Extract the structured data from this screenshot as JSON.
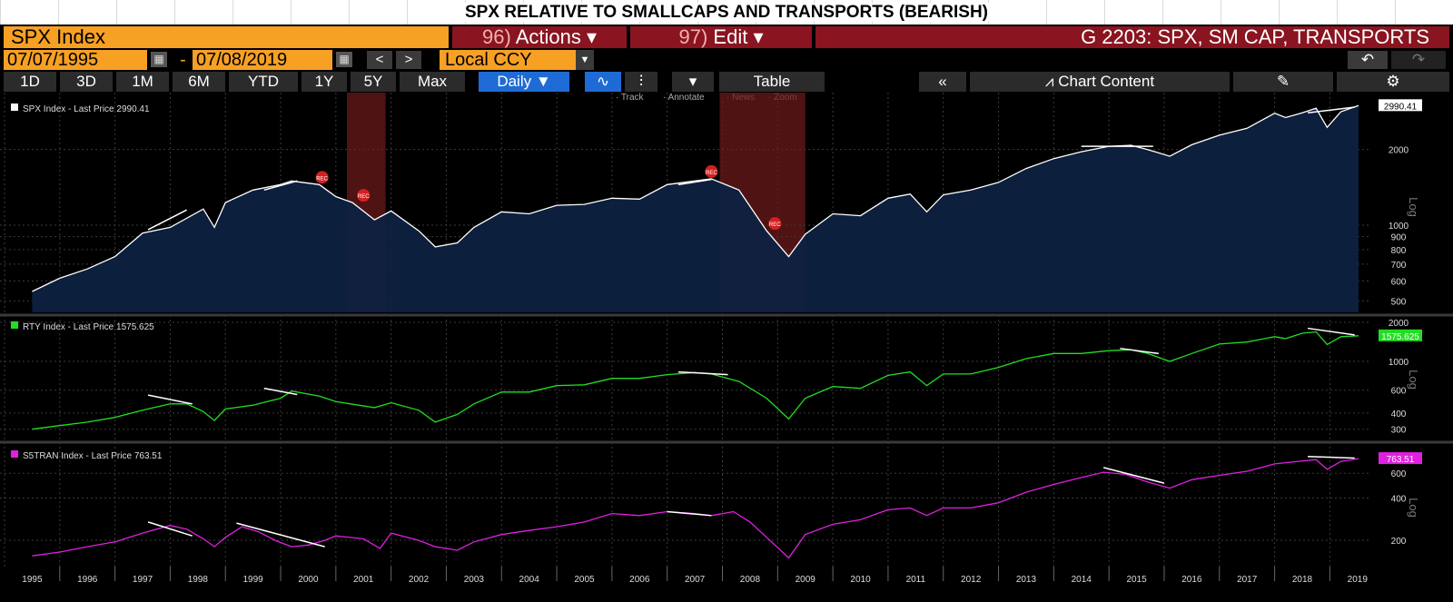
{
  "title": "SPX RELATIVE TO SMALLCAPS AND TRANSPORTS (BEARISH)",
  "toolbar": {
    "ticker": "SPX Index",
    "actions_num": "96)",
    "actions_label": "Actions",
    "edit_num": "97)",
    "edit_label": "Edit",
    "graph_title": "G 2203: SPX, SM CAP, TRANSPORTS",
    "start_date": "07/07/1995",
    "end_date": "07/08/2019",
    "prev": "<",
    "next": ">",
    "currency": "Local CCY",
    "periods": [
      "1D",
      "3D",
      "1M",
      "6M",
      "YTD",
      "1Y",
      "5Y",
      "Max"
    ],
    "frequency": "Daily",
    "table_label": "Table",
    "chart_content_label": "Chart Content",
    "tools": [
      "Track",
      "Annotate",
      "News",
      "Zoom"
    ]
  },
  "chart_data": [
    {
      "type": "area",
      "legend": "SPX Index - Last Price 2990.41",
      "last_price_label": "2990.41",
      "color": "#ffffff",
      "fill": "#0d2140",
      "scale": "log",
      "ylim": [
        450,
        3100
      ],
      "y_ticks": [
        "2000",
        "1000",
        "900",
        "800",
        "700",
        "600",
        "500"
      ],
      "y_tick_values": [
        2000,
        1000,
        900,
        800,
        700,
        600,
        500
      ],
      "x": [
        1995.5,
        1996.0,
        1996.5,
        1997.0,
        1997.5,
        1998.0,
        1998.6,
        1998.8,
        1999.0,
        1999.5,
        2000.0,
        2000.2,
        2000.7,
        2001.0,
        2001.3,
        2001.7,
        2002.0,
        2002.5,
        2002.8,
        2003.2,
        2003.5,
        2004.0,
        2004.5,
        2005.0,
        2005.5,
        2006.0,
        2006.5,
        2007.0,
        2007.5,
        2007.8,
        2008.3,
        2008.8,
        2009.2,
        2009.5,
        2010.0,
        2010.5,
        2011.0,
        2011.4,
        2011.7,
        2012.0,
        2012.5,
        2013.0,
        2013.5,
        2014.0,
        2014.5,
        2015.0,
        2015.4,
        2015.7,
        2016.1,
        2016.5,
        2017.0,
        2017.5,
        2018.0,
        2018.2,
        2018.5,
        2018.75,
        2018.95,
        2019.2,
        2019.52
      ],
      "values": [
        545,
        615,
        670,
        750,
        930,
        980,
        1160,
        980,
        1230,
        1380,
        1450,
        1500,
        1450,
        1300,
        1230,
        1050,
        1140,
        950,
        820,
        850,
        980,
        1130,
        1110,
        1200,
        1210,
        1280,
        1270,
        1450,
        1500,
        1530,
        1380,
        950,
        750,
        920,
        1110,
        1090,
        1280,
        1330,
        1130,
        1320,
        1380,
        1480,
        1680,
        1840,
        1960,
        2060,
        2080,
        2000,
        1880,
        2090,
        2280,
        2430,
        2790,
        2680,
        2800,
        2920,
        2450,
        2830,
        2990.41
      ],
      "trendlines": [
        [
          1997.6,
          960,
          1998.3,
          1150
        ],
        [
          1999.7,
          1380,
          2000.3,
          1500
        ],
        [
          2007.2,
          1450,
          2007.8,
          1520
        ],
        [
          2014.5,
          2060,
          2015.8,
          2060
        ],
        [
          2018.6,
          2800,
          2019.45,
          2950
        ]
      ],
      "recessions": [
        [
          2001.2,
          2001.9
        ],
        [
          2007.95,
          2009.5
        ]
      ]
    },
    {
      "type": "line",
      "legend": "RTY Index - Last Price 1575.625",
      "last_price_label": "1575.625",
      "color": "#22dd22",
      "scale": "log",
      "ylim": [
        250,
        2100
      ],
      "y_ticks": [
        "2000",
        "1000",
        "600",
        "400",
        "300"
      ],
      "y_tick_values": [
        2000,
        1000,
        600,
        400,
        300
      ],
      "x": [
        1995.5,
        1996.0,
        1996.5,
        1997.0,
        1997.5,
        1998.0,
        1998.3,
        1998.6,
        1998.8,
        1999.0,
        1999.5,
        2000.0,
        2000.2,
        2000.7,
        2001.0,
        2001.7,
        2002.0,
        2002.5,
        2002.8,
        2003.2,
        2003.5,
        2004.0,
        2004.5,
        2005.0,
        2005.5,
        2006.0,
        2006.5,
        2007.0,
        2007.5,
        2007.8,
        2008.3,
        2008.8,
        2009.2,
        2009.5,
        2010.0,
        2010.5,
        2011.0,
        2011.4,
        2011.7,
        2012.0,
        2012.5,
        2013.0,
        2013.5,
        2014.0,
        2014.5,
        2015.0,
        2015.4,
        2015.7,
        2016.1,
        2016.5,
        2017.0,
        2017.5,
        2018.0,
        2018.2,
        2018.5,
        2018.75,
        2018.95,
        2019.2,
        2019.52
      ],
      "values": [
        300,
        320,
        340,
        370,
        420,
        470,
        470,
        410,
        350,
        430,
        460,
        520,
        590,
        540,
        490,
        440,
        480,
        420,
        340,
        390,
        470,
        580,
        580,
        650,
        660,
        740,
        740,
        790,
        820,
        800,
        700,
        520,
        360,
        520,
        640,
        620,
        780,
        830,
        650,
        800,
        800,
        900,
        1050,
        1150,
        1150,
        1210,
        1230,
        1150,
        1000,
        1150,
        1360,
        1410,
        1550,
        1500,
        1650,
        1690,
        1350,
        1550,
        1575.625
      ],
      "trendlines": [
        [
          1997.6,
          550,
          1998.4,
          470
        ],
        [
          1999.7,
          620,
          2000.3,
          555
        ],
        [
          2007.2,
          830,
          2008.1,
          790
        ],
        [
          2015.2,
          1260,
          2015.9,
          1150
        ],
        [
          2018.6,
          1800,
          2019.45,
          1600
        ]
      ]
    },
    {
      "type": "line",
      "legend": "S5TRAN Index - Last Price 763.51",
      "last_price_label": "763.51",
      "color": "#e020e0",
      "scale": "log",
      "ylim": [
        130,
        900
      ],
      "y_ticks": [
        "600",
        "400",
        "200"
      ],
      "y_tick_values": [
        600,
        400,
        200
      ],
      "x": [
        1995.5,
        1996.0,
        1996.5,
        1997.0,
        1997.5,
        1998.0,
        1998.3,
        1998.6,
        1998.8,
        1999.0,
        1999.3,
        1999.6,
        1999.9,
        2000.2,
        2000.5,
        2000.8,
        2001.0,
        2001.5,
        2001.8,
        2002.0,
        2002.5,
        2002.8,
        2003.2,
        2003.5,
        2004.0,
        2004.5,
        2005.0,
        2005.5,
        2006.0,
        2006.5,
        2007.0,
        2007.5,
        2007.8,
        2008.2,
        2008.5,
        2008.8,
        2009.2,
        2009.5,
        2010.0,
        2010.5,
        2011.0,
        2011.4,
        2011.7,
        2012.0,
        2012.5,
        2013.0,
        2013.5,
        2014.0,
        2014.5,
        2014.9,
        2015.3,
        2015.7,
        2016.1,
        2016.5,
        2017.0,
        2017.5,
        2018.0,
        2018.3,
        2018.75,
        2018.95,
        2019.2,
        2019.52
      ],
      "values": [
        155,
        165,
        180,
        195,
        225,
        255,
        240,
        205,
        180,
        210,
        250,
        230,
        200,
        180,
        185,
        200,
        215,
        205,
        175,
        225,
        200,
        180,
        170,
        195,
        220,
        235,
        250,
        270,
        310,
        300,
        320,
        310,
        300,
        320,
        270,
        210,
        150,
        220,
        260,
        280,
        330,
        340,
        300,
        340,
        340,
        370,
        440,
        500,
        560,
        610,
        590,
        520,
        470,
        540,
        580,
        620,
        700,
        720,
        750,
        640,
        730,
        763.51
      ],
      "trendlines": [
        [
          1997.6,
          270,
          1998.4,
          215
        ],
        [
          1999.2,
          265,
          2000.8,
          180
        ],
        [
          2007.0,
          320,
          2007.8,
          300
        ],
        [
          2014.9,
          660,
          2016.0,
          510
        ],
        [
          2018.6,
          790,
          2019.45,
          770
        ]
      ]
    }
  ],
  "x_axis_years": [
    "1995",
    "1996",
    "1997",
    "1998",
    "1999",
    "2000",
    "2001",
    "2002",
    "2003",
    "2004",
    "2005",
    "2006",
    "2007",
    "2008",
    "2009",
    "2010",
    "2011",
    "2012",
    "2013",
    "2014",
    "2015",
    "2016",
    "2017",
    "2018",
    "2019"
  ],
  "y_axis_scale_label": "Log",
  "recession_marker_text": "REC"
}
